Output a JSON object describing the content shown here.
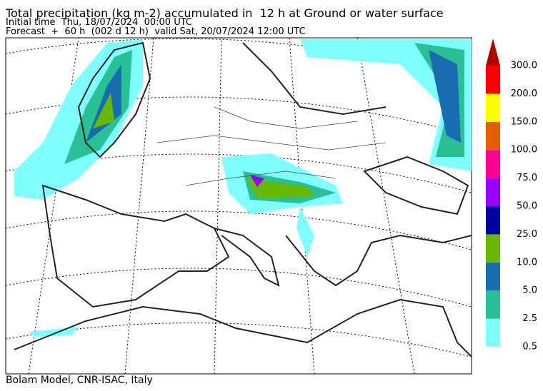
{
  "header": {
    "title": "Total precipitation (kg m-2) accumulated in  12 h at Ground or water surface",
    "initial": "Initial time  Thu, 18/07/2024  00:00 UTC",
    "forecast": "Forecast  +  60 h  (002 d 12 h)  valid Sat, 20/07/2024 12:00 UTC"
  },
  "footer": "Bolam Model, CNR-ISAC, Italy",
  "colorbar": {
    "labels": [
      "0.5",
      "2.5",
      "5.0",
      "10.0",
      "25.0",
      "50.0",
      "75.0",
      "100.0",
      "150.0",
      "200.0",
      "300.0"
    ],
    "colors": [
      "#80ffff",
      "#2bbf96",
      "#1a6cb0",
      "#66b800",
      "#0000a0",
      "#9900ff",
      "#ff0090",
      "#e65c00",
      "#ffff00",
      "#ff0000",
      "#b00000"
    ]
  }
}
